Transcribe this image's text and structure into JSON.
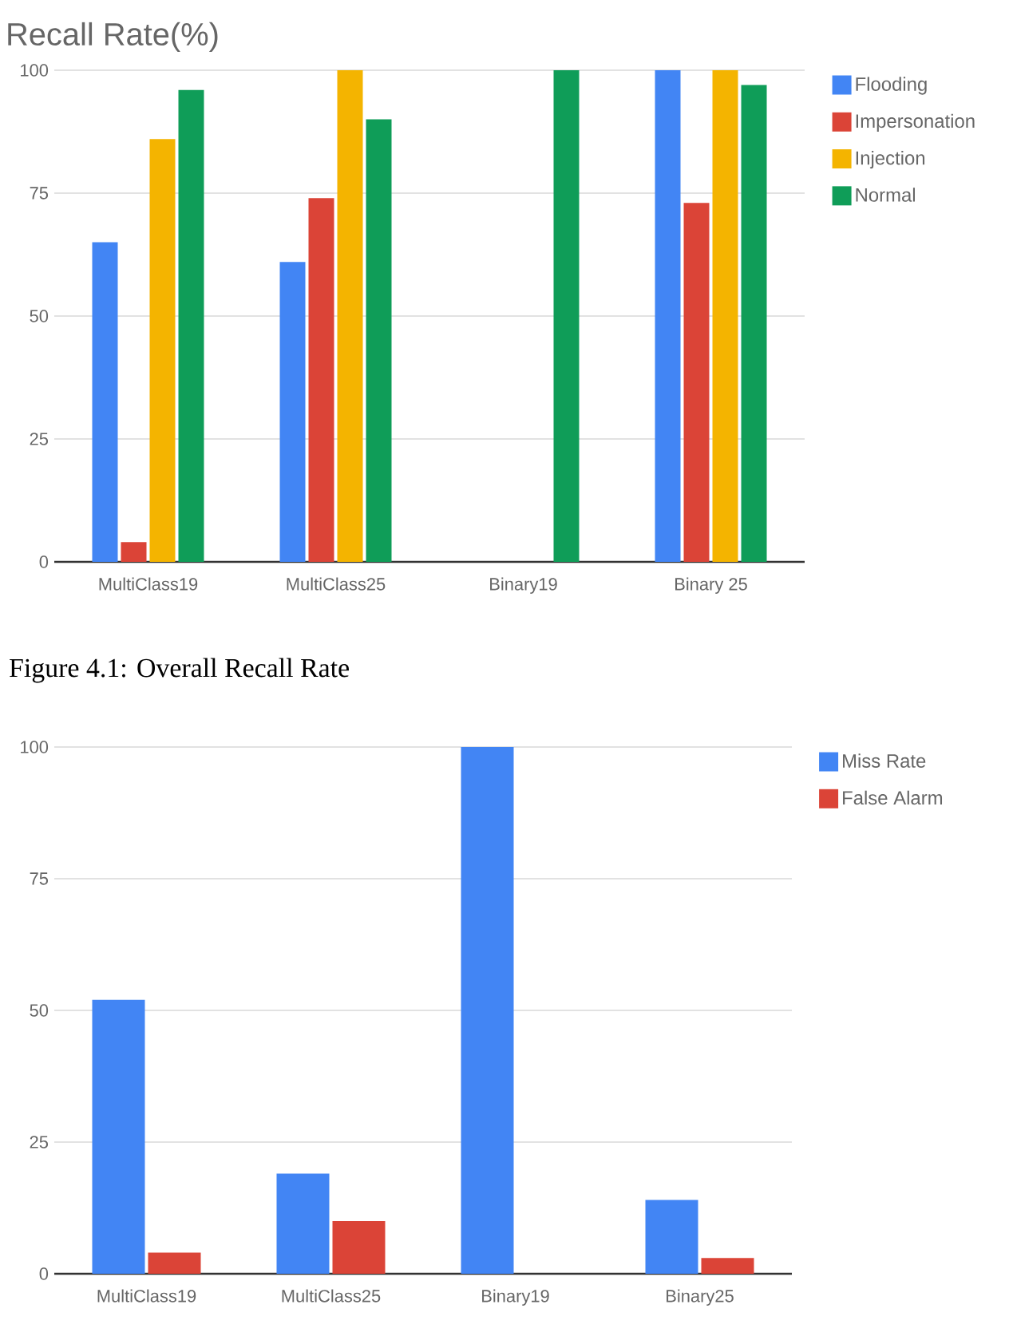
{
  "chart_data": [
    {
      "type": "bar",
      "title": "Recall Rate(%)",
      "categories": [
        "MultiClass19",
        "MultiClass25",
        "Binary19",
        "Binary 25"
      ],
      "series": [
        {
          "name": "Flooding",
          "color": "#4285f4",
          "values": [
            65,
            61,
            0,
            100
          ]
        },
        {
          "name": "Impersonation",
          "color": "#db4437",
          "values": [
            4,
            74,
            0,
            73
          ]
        },
        {
          "name": "Injection",
          "color": "#f4b400",
          "values": [
            86,
            100,
            0,
            100
          ]
        },
        {
          "name": "Normal",
          "color": "#0f9d58",
          "values": [
            96,
            90,
            100,
            97
          ]
        }
      ],
      "ylim": [
        0,
        100
      ],
      "yticks": [
        0,
        25,
        50,
        75,
        100
      ],
      "grid": "y",
      "legend": "top right",
      "annotations": [
        "Figure 4.1: Overall Recall Rate"
      ]
    },
    {
      "type": "bar",
      "categories": [
        "MultiClass19",
        "MultiClass25",
        "Binary19",
        "Binary25"
      ],
      "series": [
        {
          "name": "Miss Rate",
          "color": "#4285f4",
          "values": [
            52,
            19,
            100,
            14
          ]
        },
        {
          "name": "False Alarm",
          "color": "#db4437",
          "values": [
            4,
            10,
            0,
            3
          ]
        }
      ],
      "ylim": [
        0,
        100
      ],
      "yticks": [
        0,
        25,
        50,
        75,
        100
      ],
      "grid": "y",
      "legend": "top right"
    }
  ]
}
